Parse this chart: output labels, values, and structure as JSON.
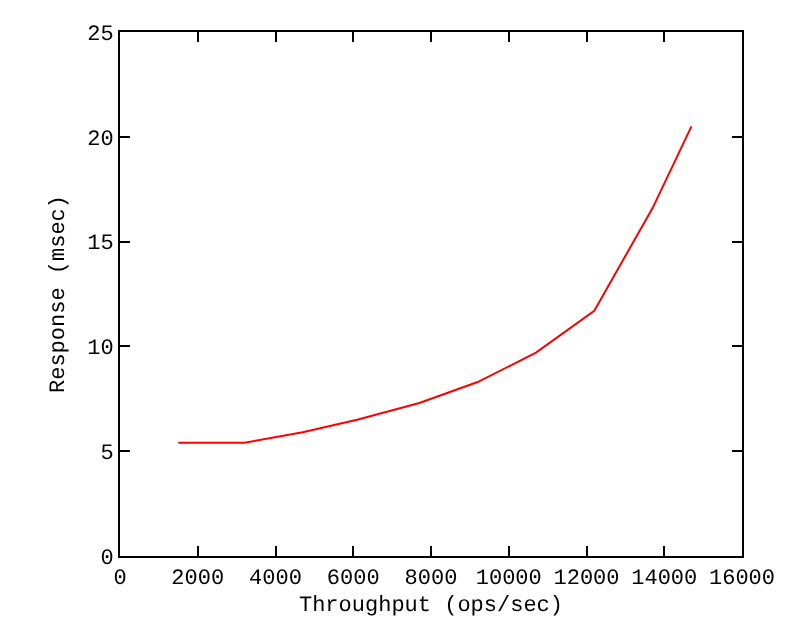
{
  "chart_data": {
    "type": "line",
    "xlabel": "Throughput (ops/sec)",
    "ylabel": "Response (msec)",
    "xlim": [
      0,
      16000
    ],
    "xticks": [
      0,
      2000,
      4000,
      6000,
      8000,
      10000,
      12000,
      14000,
      16000
    ],
    "ylim": [
      0,
      25
    ],
    "yticks": [
      0,
      5,
      10,
      15,
      20,
      25
    ],
    "legend": false,
    "series": [
      {
        "color": "#ff0000",
        "x": [
          1500,
          3200,
          4700,
          6100,
          7700,
          9200,
          10700,
          12200,
          13700,
          14700
        ],
        "values": [
          5.4,
          5.4,
          5.9,
          6.5,
          7.3,
          8.3,
          9.7,
          11.7,
          16.6,
          20.5
        ]
      }
    ]
  }
}
